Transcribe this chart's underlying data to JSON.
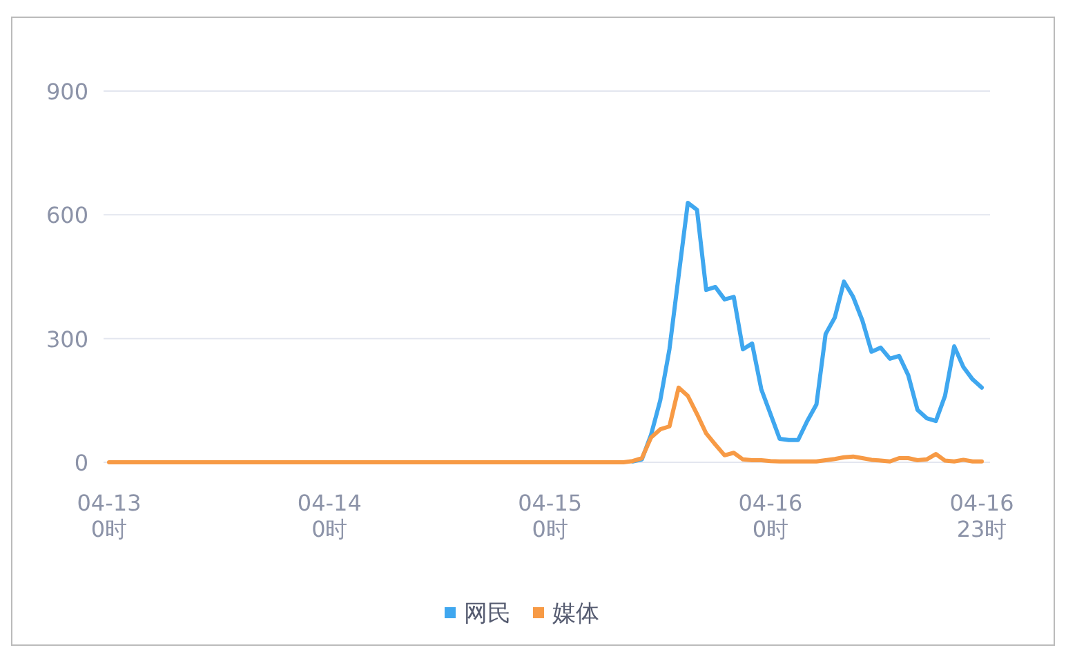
{
  "chart_data": {
    "type": "line",
    "categories": [
      "04-13\n0时",
      null,
      null,
      null,
      null,
      null,
      null,
      null,
      null,
      null,
      null,
      null,
      null,
      null,
      null,
      null,
      null,
      null,
      null,
      null,
      null,
      null,
      null,
      null,
      "04-14\n0时",
      null,
      null,
      null,
      null,
      null,
      null,
      null,
      null,
      null,
      null,
      null,
      null,
      null,
      null,
      null,
      null,
      null,
      null,
      null,
      null,
      null,
      null,
      null,
      "04-15\n0时",
      null,
      null,
      null,
      null,
      null,
      null,
      null,
      null,
      null,
      null,
      null,
      null,
      null,
      null,
      null,
      null,
      null,
      null,
      null,
      null,
      null,
      null,
      null,
      "04-16\n0时",
      null,
      null,
      null,
      null,
      null,
      null,
      null,
      null,
      null,
      null,
      null,
      null,
      null,
      null,
      null,
      null,
      null,
      null,
      null,
      null,
      null,
      null,
      "04-16\n23时"
    ],
    "series": [
      {
        "name": "网民",
        "color": "#3fa7ef",
        "values": [
          null,
          null,
          null,
          null,
          null,
          null,
          null,
          null,
          null,
          null,
          null,
          null,
          null,
          null,
          null,
          null,
          null,
          null,
          null,
          null,
          null,
          null,
          null,
          null,
          null,
          null,
          null,
          null,
          null,
          null,
          null,
          null,
          null,
          null,
          null,
          null,
          null,
          null,
          null,
          null,
          null,
          null,
          null,
          null,
          null,
          null,
          null,
          null,
          null,
          null,
          null,
          null,
          null,
          null,
          null,
          null,
          null,
          2,
          7,
          67,
          150,
          274,
          452,
          629,
          612,
          418,
          425,
          395,
          401,
          274,
          288,
          177,
          117,
          57,
          54,
          54,
          100,
          140,
          311,
          351,
          438,
          401,
          344,
          268,
          278,
          251,
          258,
          211,
          127,
          107,
          100,
          161,
          281,
          231,
          201,
          181
        ]
      },
      {
        "name": "媒体",
        "color": "#f79a45",
        "values": [
          0,
          0,
          0,
          0,
          0,
          0,
          0,
          0,
          0,
          0,
          0,
          0,
          0,
          0,
          0,
          0,
          0,
          0,
          0,
          0,
          0,
          0,
          0,
          0,
          0,
          0,
          0,
          0,
          0,
          0,
          0,
          0,
          0,
          0,
          0,
          0,
          0,
          0,
          0,
          0,
          0,
          0,
          0,
          0,
          0,
          0,
          0,
          0,
          0,
          0,
          0,
          0,
          0,
          0,
          0,
          0,
          0,
          3,
          10,
          60,
          80,
          87,
          181,
          161,
          117,
          70,
          43,
          17,
          23,
          7,
          5,
          5,
          3,
          2,
          2,
          2,
          2,
          2,
          5,
          8,
          12,
          14,
          10,
          6,
          4,
          2,
          10,
          10,
          5,
          7,
          20,
          4,
          2,
          6,
          2,
          2
        ]
      }
    ],
    "ylim": [
      0,
      900
    ],
    "yticks": [
      0,
      300,
      600,
      900
    ],
    "grid": "y",
    "legend": "bottom",
    "marker": "none",
    "line_style": "solid"
  }
}
